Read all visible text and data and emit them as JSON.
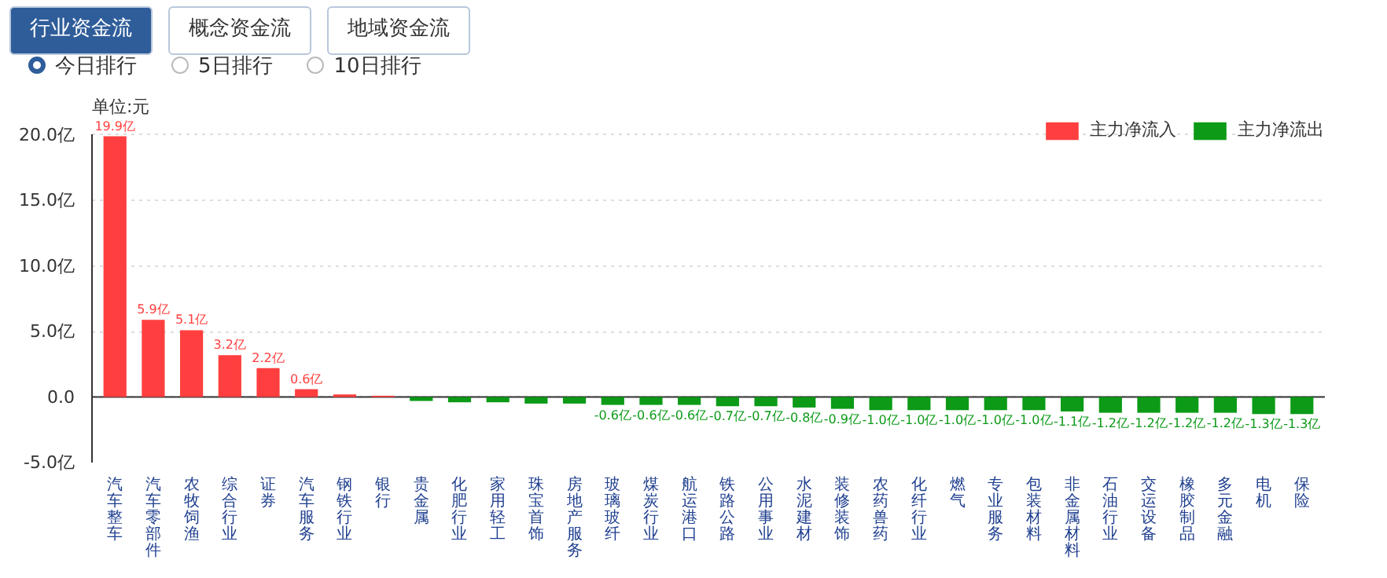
{
  "chart_data": {
    "type": "bar",
    "ylabel": "单位:元",
    "annotations": [
      "行业资金流",
      "概念资金流",
      "地域资金流",
      "今日排行",
      "5日排行",
      "10日排行"
    ],
    "categories": [
      "汽车整车",
      "汽车零部件",
      "农牧饲渔",
      "综合行业",
      "证券",
      "汽车服务",
      "钢铁行业",
      "银行",
      "贵金属",
      "化肥行业",
      "家用轻工",
      "珠宝首饰",
      "房地产服务",
      "玻璃玻纤",
      "煤炭行业",
      "航运港口",
      "铁路公路",
      "公用事业",
      "水泥建材",
      "装修装饰",
      "农药兽药",
      "化纤行业",
      "燃气",
      "专业服务",
      "包装材料",
      "非金属材料",
      "石油行业",
      "交运设备",
      "橡胶制品",
      "多元金融",
      "电机",
      "保险"
    ],
    "stacked": true,
    "series": [
      {
        "name": "主力净流入",
        "color": "#ff3f3f",
        "values": [
          19.9,
          5.9,
          5.1,
          3.2,
          2.2,
          0.6,
          0.2,
          0.1,
          null,
          null,
          null,
          null,
          null,
          null,
          null,
          null,
          null,
          null,
          null,
          null,
          null,
          null,
          null,
          null,
          null,
          null,
          null,
          null,
          null,
          null,
          null,
          null
        ],
        "value_labels": [
          "19.9亿",
          "5.9亿",
          "5.1亿",
          "3.2亿",
          "2.2亿",
          "0.6亿",
          null,
          null,
          null,
          null,
          null,
          null,
          null,
          null,
          null,
          null,
          null,
          null,
          null,
          null,
          null,
          null,
          null,
          null,
          null,
          null,
          null,
          null,
          null,
          null,
          null,
          null
        ]
      },
      {
        "name": "主力净流出",
        "color": "#0c9a17",
        "values": [
          null,
          null,
          null,
          null,
          null,
          null,
          null,
          null,
          -0.3,
          -0.4,
          -0.4,
          -0.5,
          -0.5,
          -0.6,
          -0.6,
          -0.6,
          -0.7,
          -0.7,
          -0.8,
          -0.9,
          -1.0,
          -1.0,
          -1.0,
          -1.0,
          -1.0,
          -1.1,
          -1.2,
          -1.2,
          -1.2,
          -1.2,
          -1.3,
          -1.3
        ],
        "value_labels": [
          null,
          null,
          null,
          null,
          null,
          null,
          null,
          null,
          null,
          null,
          null,
          null,
          null,
          "-0.6亿",
          "-0.6亿",
          "-0.6亿",
          "-0.7亿",
          "-0.7亿",
          "-0.8亿",
          "-0.9亿",
          "-1.0亿",
          "-1.0亿",
          "-1.0亿",
          "-1.0亿",
          "-1.0亿",
          "-1.1亿",
          "-1.2亿",
          "-1.2亿",
          "-1.2亿",
          "-1.2亿",
          "-1.3亿",
          "-1.3亿"
        ]
      }
    ],
    "ylim": [
      -5,
      20
    ],
    "yticks": [
      {
        "value": -5,
        "label": "-5.0亿"
      },
      {
        "value": 0,
        "label": "0.0"
      },
      {
        "value": 5,
        "label": "5.0亿"
      },
      {
        "value": 10,
        "label": "10.0亿"
      },
      {
        "value": 15,
        "label": "15.0亿"
      },
      {
        "value": 20,
        "label": "20.0亿"
      }
    ],
    "grid": "y",
    "legend": "top right"
  }
}
